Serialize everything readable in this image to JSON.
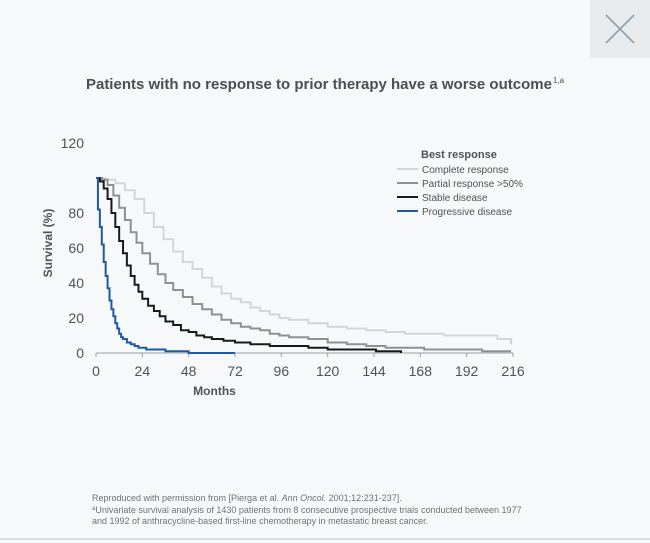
{
  "title": "Patients with no response to prior therapy have a worse outcome",
  "title_sup": "1,a",
  "close_button": {
    "icon": "close-icon"
  },
  "footer": {
    "source_prefix": "Reproduced with permission from [Pierga et al.",
    "source_journal": "Ann Oncol.",
    "source_suffix": "2001;12:231-237].",
    "note_marker": "a",
    "note_line1": "Univariate survival analysis of 1430 patients from 8 consecutive prospective trials conducted between 1977",
    "note_line2": "and 1992 of anthracycline-based first-line chemotherapy in metastatic breast cancer."
  },
  "chart_data": {
    "type": "line",
    "xlabel": "Months",
    "ylabel": "Survival (%)",
    "xlim": [
      0,
      216
    ],
    "ylim": [
      0,
      120
    ],
    "xticks": [
      "0",
      "24",
      "48",
      "72",
      "96",
      "120",
      "144",
      "168",
      "192",
      "216"
    ],
    "yticks": [
      "0",
      "20",
      "40",
      "60",
      "80",
      "120"
    ],
    "legend_title": "Best response",
    "legend_position": "top-right",
    "series": [
      {
        "name": "Complete response",
        "color": "#d3d6d9",
        "points": [
          [
            0,
            100
          ],
          [
            5,
            99
          ],
          [
            10,
            97
          ],
          [
            15,
            93
          ],
          [
            20,
            88
          ],
          [
            25,
            80
          ],
          [
            30,
            72
          ],
          [
            35,
            65
          ],
          [
            40,
            58
          ],
          [
            45,
            52
          ],
          [
            50,
            48
          ],
          [
            55,
            43
          ],
          [
            60,
            38
          ],
          [
            65,
            34
          ],
          [
            70,
            31
          ],
          [
            75,
            29
          ],
          [
            80,
            26
          ],
          [
            85,
            24
          ],
          [
            90,
            22
          ],
          [
            95,
            20
          ],
          [
            100,
            19
          ],
          [
            110,
            17
          ],
          [
            120,
            15
          ],
          [
            130,
            14
          ],
          [
            140,
            13
          ],
          [
            150,
            12
          ],
          [
            160,
            11
          ],
          [
            180,
            10
          ],
          [
            200,
            10
          ],
          [
            208,
            8
          ],
          [
            215,
            5
          ]
        ]
      },
      {
        "name": "Partial response >50%",
        "color": "#8d9194",
        "points": [
          [
            0,
            100
          ],
          [
            3,
            99
          ],
          [
            6,
            96
          ],
          [
            9,
            90
          ],
          [
            12,
            83
          ],
          [
            15,
            76
          ],
          [
            18,
            69
          ],
          [
            21,
            63
          ],
          [
            24,
            57
          ],
          [
            28,
            51
          ],
          [
            32,
            45
          ],
          [
            36,
            40
          ],
          [
            40,
            36
          ],
          [
            45,
            32
          ],
          [
            50,
            28
          ],
          [
            55,
            25
          ],
          [
            60,
            22
          ],
          [
            65,
            19
          ],
          [
            70,
            17
          ],
          [
            75,
            15
          ],
          [
            80,
            14
          ],
          [
            85,
            13
          ],
          [
            90,
            11
          ],
          [
            95,
            10
          ],
          [
            100,
            9
          ],
          [
            110,
            8
          ],
          [
            120,
            6
          ],
          [
            130,
            5
          ],
          [
            140,
            4
          ],
          [
            150,
            3
          ],
          [
            170,
            2
          ],
          [
            190,
            2
          ],
          [
            200,
            1
          ],
          [
            215,
            1
          ]
        ]
      },
      {
        "name": "Stable disease",
        "color": "#1a1a1a",
        "points": [
          [
            0,
            100
          ],
          [
            2,
            98
          ],
          [
            4,
            94
          ],
          [
            6,
            88
          ],
          [
            8,
            80
          ],
          [
            10,
            72
          ],
          [
            12,
            64
          ],
          [
            14,
            57
          ],
          [
            16,
            50
          ],
          [
            18,
            44
          ],
          [
            20,
            39
          ],
          [
            22,
            35
          ],
          [
            24,
            31
          ],
          [
            27,
            27
          ],
          [
            30,
            24
          ],
          [
            33,
            21
          ],
          [
            36,
            18
          ],
          [
            40,
            16
          ],
          [
            44,
            13
          ],
          [
            48,
            12
          ],
          [
            52,
            10
          ],
          [
            56,
            9
          ],
          [
            60,
            8
          ],
          [
            66,
            7
          ],
          [
            72,
            6
          ],
          [
            80,
            5
          ],
          [
            90,
            4
          ],
          [
            100,
            4
          ],
          [
            110,
            3
          ],
          [
            120,
            2
          ],
          [
            130,
            2
          ],
          [
            145,
            1
          ],
          [
            158,
            0
          ]
        ]
      },
      {
        "name": "Progressive disease",
        "color": "#1f5aa0",
        "points": [
          [
            0,
            100
          ],
          [
            1,
            82
          ],
          [
            2,
            72
          ],
          [
            3,
            62
          ],
          [
            4,
            52
          ],
          [
            5,
            44
          ],
          [
            6,
            37
          ],
          [
            7,
            30
          ],
          [
            8,
            25
          ],
          [
            9,
            21
          ],
          [
            10,
            17
          ],
          [
            11,
            14
          ],
          [
            12,
            11
          ],
          [
            13,
            9
          ],
          [
            14,
            8
          ],
          [
            16,
            6
          ],
          [
            18,
            5
          ],
          [
            20,
            4
          ],
          [
            22,
            3
          ],
          [
            26,
            2
          ],
          [
            30,
            2
          ],
          [
            36,
            1
          ],
          [
            42,
            1
          ],
          [
            48,
            0
          ],
          [
            72,
            0
          ]
        ]
      }
    ]
  }
}
